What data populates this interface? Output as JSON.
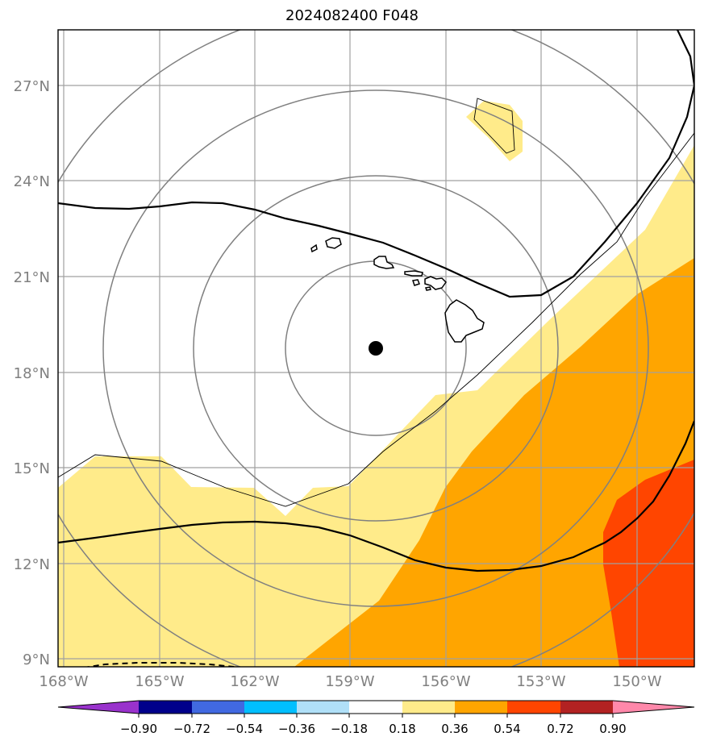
{
  "title": "2024082400 F048",
  "map": {
    "lat_labels": [
      "27°N",
      "24°N",
      "21°N",
      "18°N",
      "15°N",
      "12°N",
      "9°N"
    ],
    "lon_labels": [
      "168°W",
      "165°W",
      "162°W",
      "159°W",
      "156°W",
      "153°W",
      "150°W"
    ],
    "label_color": "#808080",
    "gridline_color": "#a0a0a0",
    "storm_center_marker": "filled black circle"
  },
  "colorbar": {
    "tick_labels": [
      "−0.90",
      "−0.72",
      "−0.54",
      "−0.36",
      "−0.18",
      "0.18",
      "0.36",
      "0.54",
      "0.72",
      "0.90"
    ],
    "bins": [
      {
        "color": "#9932cc"
      },
      {
        "color": "#00008b"
      },
      {
        "color": "#4169e1"
      },
      {
        "color": "#00bfff"
      },
      {
        "color": "#b0e0f8"
      },
      {
        "color": "#ffffff"
      },
      {
        "color": "#ffeb8a"
      },
      {
        "color": "#ffa500"
      },
      {
        "color": "#ff4500"
      },
      {
        "color": "#b22222"
      },
      {
        "color": "#ff88aa"
      }
    ]
  }
}
